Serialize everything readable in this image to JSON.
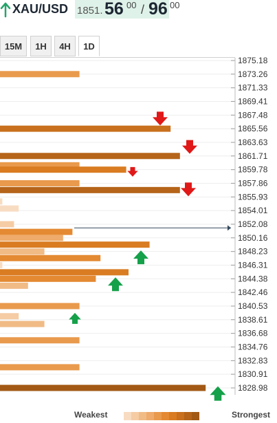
{
  "header": {
    "symbol": "XAU/USD",
    "price_prefix": "1851.",
    "price_main": "56",
    "price_sup": "00",
    "slash": "/",
    "ask_main": "96",
    "ask_sup": "00"
  },
  "tabs": [
    {
      "label": "15M",
      "active": false
    },
    {
      "label": "1H",
      "active": false
    },
    {
      "label": "4H",
      "active": false
    },
    {
      "label": "1D",
      "active": true
    }
  ],
  "legend": {
    "weakest": "Weakest",
    "strongest": "Strongest",
    "colors": [
      "#f8dcc2",
      "#f5cca4",
      "#f1bb86",
      "#eeab6b",
      "#e99a4d",
      "#e48a33",
      "#d97c22",
      "#c8701d",
      "#b56419",
      "#a25915"
    ]
  },
  "current_price": 1851.56,
  "chart_data": {
    "type": "bar",
    "orientation": "horizontal",
    "price_axis": [
      "1875.18",
      "1873.26",
      "1871.33",
      "1869.41",
      "1867.48",
      "1865.56",
      "1863.63",
      "1861.71",
      "1859.78",
      "1857.86",
      "1855.93",
      "1854.01",
      "1852.08",
      "1850.16",
      "1848.23",
      "1846.31",
      "1844.38",
      "1842.46",
      "1840.53",
      "1838.61",
      "1836.68",
      "1834.76",
      "1832.83",
      "1830.91",
      "1828.98"
    ],
    "levels": [
      {
        "price": 1873.26,
        "strength": 0.34,
        "shade": 4
      },
      {
        "price": 1865.56,
        "strength": 0.73,
        "shade": 7
      },
      {
        "price": 1861.71,
        "strength": 0.77,
        "shade": 8
      },
      {
        "price": 1860.4,
        "strength": 0.34,
        "shade": 4
      },
      {
        "price": 1859.78,
        "strength": 0.54,
        "shade": 6
      },
      {
        "price": 1857.86,
        "strength": 0.34,
        "shade": 4
      },
      {
        "price": 1856.9,
        "strength": 0.77,
        "shade": 8
      },
      {
        "price": 1855.3,
        "strength": 0.01,
        "shade": 0
      },
      {
        "price": 1854.3,
        "strength": 0.08,
        "shade": 0
      },
      {
        "price": 1852.08,
        "strength": 0.06,
        "shade": 1
      },
      {
        "price": 1851.0,
        "strength": 0.31,
        "shade": 5
      },
      {
        "price": 1850.16,
        "strength": 0.27,
        "shade": 3
      },
      {
        "price": 1849.2,
        "strength": 0.64,
        "shade": 6
      },
      {
        "price": 1848.23,
        "strength": 0.19,
        "shade": 2
      },
      {
        "price": 1847.3,
        "strength": 0.43,
        "shade": 5
      },
      {
        "price": 1846.31,
        "strength": 0.01,
        "shade": 0
      },
      {
        "price": 1845.3,
        "strength": 0.55,
        "shade": 6
      },
      {
        "price": 1844.38,
        "strength": 0.41,
        "shade": 5
      },
      {
        "price": 1843.4,
        "strength": 0.12,
        "shade": 2
      },
      {
        "price": 1840.53,
        "strength": 0.34,
        "shade": 4
      },
      {
        "price": 1839.1,
        "strength": 0.08,
        "shade": 1
      },
      {
        "price": 1838.0,
        "strength": 0.19,
        "shade": 2
      },
      {
        "price": 1835.7,
        "strength": 0.34,
        "shade": 4
      },
      {
        "price": 1831.9,
        "strength": 0.34,
        "shade": 4
      },
      {
        "price": 1828.98,
        "strength": 0.88,
        "shade": 9
      }
    ],
    "resistance_arrows": [
      1866.6,
      1862.6,
      1859.2,
      1856.6
    ],
    "support_arrows": [
      1847.8,
      1844.0,
      1839.1,
      1828.6
    ]
  }
}
